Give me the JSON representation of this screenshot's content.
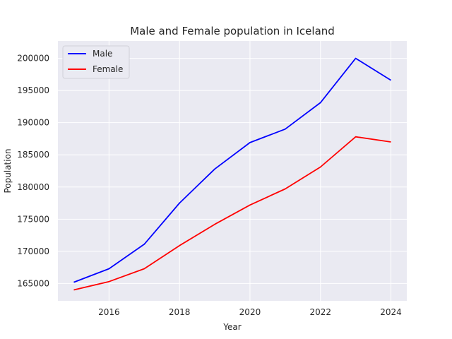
{
  "chart_data": {
    "type": "line",
    "title": "Male and Female population in Iceland",
    "xlabel": "Year",
    "ylabel": "Population",
    "x": [
      2015,
      2016,
      2017,
      2018,
      2019,
      2020,
      2021,
      2022,
      2023,
      2024
    ],
    "xlim": [
      2014.55,
      2024.45
    ],
    "ylim": [
      162300,
      202700
    ],
    "xticks": [
      2016,
      2018,
      2020,
      2022,
      2024
    ],
    "yticks": [
      165000,
      170000,
      175000,
      180000,
      185000,
      190000,
      195000,
      200000
    ],
    "grid": true,
    "legend_position": "top-left",
    "background": "#eaeaf2",
    "series": [
      {
        "name": "Male",
        "color": "#0000ff",
        "values": [
          165200,
          167300,
          171100,
          177500,
          182800,
          186900,
          189000,
          193100,
          200000,
          196600
        ]
      },
      {
        "name": "Female",
        "color": "#ff0000",
        "values": [
          164000,
          165300,
          167300,
          170900,
          174200,
          177200,
          179700,
          183100,
          187800,
          187000
        ]
      }
    ]
  }
}
